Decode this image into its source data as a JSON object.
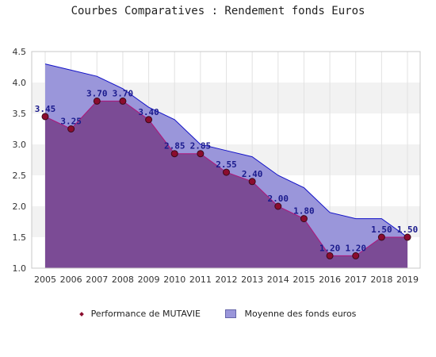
{
  "title": "Courbes Comparatives : Rendement fonds Euros",
  "legend": {
    "performance_label": "Performance de MUTAVIE",
    "moyenne_label": "Moyenne des fonds euros"
  },
  "colors": {
    "moyenne_fill": "#9a96da",
    "moyenne_line": "#1212c8",
    "performance_fill": "#7b4b95",
    "performance_line": "#b0157a",
    "marker": "#8b0c2e",
    "band": "#f2f2f2",
    "data_label": "#1a1a8c"
  },
  "chart_data": {
    "type": "area",
    "title": "Courbes Comparatives : Rendement fonds Euros",
    "x": [
      "2005",
      "2006",
      "2007",
      "2008",
      "2009",
      "2010",
      "2011",
      "2012",
      "2013",
      "2014",
      "2015",
      "2016",
      "2017",
      "2018",
      "2019"
    ],
    "ylim": [
      1.0,
      4.5
    ],
    "yticks": [
      "1.0",
      "1.5",
      "2.0",
      "2.5",
      "3.0",
      "3.5",
      "4.0",
      "4.5"
    ],
    "grid": true,
    "legend_position": "bottom",
    "series": [
      {
        "name": "Moyenne des fonds euros",
        "values": [
          4.3,
          4.2,
          4.1,
          3.9,
          3.6,
          3.4,
          3.0,
          2.9,
          2.8,
          2.5,
          2.3,
          1.9,
          1.8,
          1.8,
          1.5
        ]
      },
      {
        "name": "Performance de MUTAVIE",
        "values": [
          3.45,
          3.25,
          3.7,
          3.7,
          3.4,
          2.85,
          2.85,
          2.55,
          2.4,
          2.0,
          1.8,
          1.2,
          1.2,
          1.5,
          1.5
        ],
        "labels": [
          "3.45",
          "3.25",
          "3.70",
          "3.70",
          "3.40",
          "2.85",
          "2.85",
          "2.55",
          "2.40",
          "2.00",
          "1.80",
          "1.20",
          "1.20",
          "1.50",
          "1.50"
        ]
      }
    ]
  }
}
